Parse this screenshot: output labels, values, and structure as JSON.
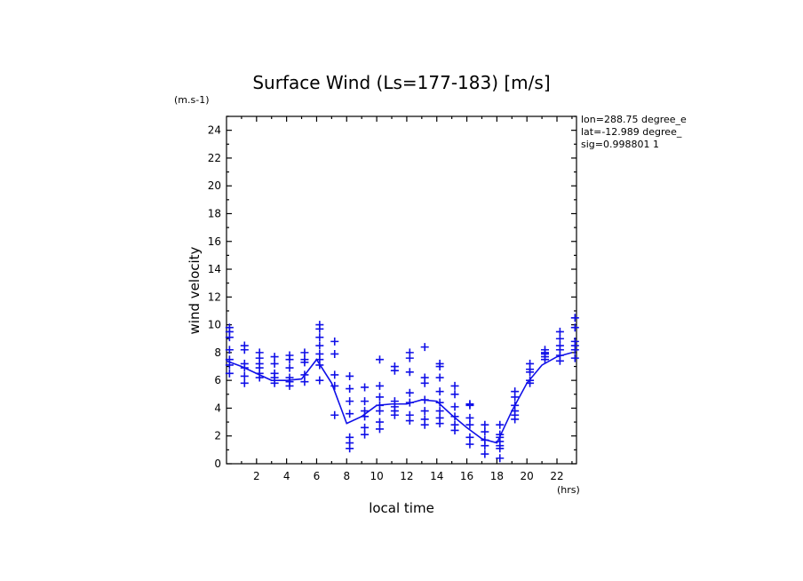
{
  "chart_data": {
    "type": "scatter",
    "title": "Surface Wind  (Ls=177-183) [m/s]",
    "units_label": "(m.s-1)",
    "xlabel": "local time",
    "x_units": "(hrs)",
    "ylabel": "wind velocity",
    "xlim": [
      0,
      23.3
    ],
    "ylim": [
      0,
      25
    ],
    "x_ticks": [
      2,
      4,
      6,
      8,
      10,
      12,
      14,
      16,
      18,
      20,
      22
    ],
    "y_ticks": [
      0,
      2,
      4,
      6,
      8,
      10,
      12,
      14,
      16,
      18,
      20,
      22,
      24
    ],
    "info": [
      "lon=288.75 degree_e",
      "lat=-12.989 degree_",
      "sig=0.998801 1"
    ],
    "color": "#1010e8",
    "series": [
      {
        "name": "mean",
        "kind": "line",
        "x": [
          0,
          1,
          2,
          3,
          4,
          5,
          6,
          7,
          8,
          9,
          10,
          11,
          12,
          13,
          14,
          15,
          16,
          17,
          18,
          19,
          20,
          21,
          22,
          23
        ],
        "y": [
          7.4,
          7.0,
          6.5,
          6.0,
          6.0,
          6.1,
          7.5,
          5.8,
          2.9,
          3.4,
          4.2,
          4.3,
          4.3,
          4.6,
          4.5,
          3.5,
          2.6,
          1.8,
          1.5,
          3.8,
          5.8,
          7.1,
          7.7,
          8.0
        ]
      },
      {
        "name": "samples",
        "kind": "points",
        "points": [
          [
            0.2,
            9.8
          ],
          [
            0.2,
            9.5
          ],
          [
            0.2,
            9.1
          ],
          [
            0.2,
            8.2
          ],
          [
            0.2,
            7.5
          ],
          [
            0.2,
            7.1
          ],
          [
            0.2,
            6.5
          ],
          [
            1.2,
            8.5
          ],
          [
            1.2,
            8.2
          ],
          [
            1.2,
            7.2
          ],
          [
            1.2,
            6.9
          ],
          [
            1.2,
            6.3
          ],
          [
            1.2,
            5.8
          ],
          [
            2.2,
            8.0
          ],
          [
            2.2,
            7.6
          ],
          [
            2.2,
            7.2
          ],
          [
            2.2,
            6.9
          ],
          [
            2.2,
            6.5
          ],
          [
            2.2,
            6.2
          ],
          [
            3.2,
            7.7
          ],
          [
            3.2,
            7.2
          ],
          [
            3.2,
            6.5
          ],
          [
            3.2,
            6.2
          ],
          [
            3.2,
            5.8
          ],
          [
            4.2,
            7.8
          ],
          [
            4.2,
            7.5
          ],
          [
            4.2,
            6.9
          ],
          [
            4.2,
            6.2
          ],
          [
            4.2,
            5.9
          ],
          [
            4.2,
            5.6
          ],
          [
            5.2,
            8.0
          ],
          [
            5.2,
            7.5
          ],
          [
            5.2,
            7.3
          ],
          [
            5.2,
            6.4
          ],
          [
            5.2,
            5.9
          ],
          [
            6.2,
            10.0
          ],
          [
            6.2,
            9.7
          ],
          [
            6.2,
            9.1
          ],
          [
            6.2,
            8.5
          ],
          [
            6.2,
            7.9
          ],
          [
            6.2,
            7.5
          ],
          [
            6.2,
            7.1
          ],
          [
            6.2,
            6.0
          ],
          [
            7.2,
            8.8
          ],
          [
            7.2,
            7.9
          ],
          [
            7.2,
            6.4
          ],
          [
            7.2,
            5.6
          ],
          [
            7.2,
            3.5
          ],
          [
            8.2,
            6.3
          ],
          [
            8.2,
            5.4
          ],
          [
            8.2,
            4.5
          ],
          [
            8.2,
            3.6
          ],
          [
            8.2,
            1.9
          ],
          [
            8.2,
            1.5
          ],
          [
            8.2,
            1.1
          ],
          [
            9.2,
            5.5
          ],
          [
            9.2,
            4.5
          ],
          [
            9.2,
            3.8
          ],
          [
            9.2,
            3.4
          ],
          [
            9.2,
            2.6
          ],
          [
            9.2,
            2.1
          ],
          [
            10.2,
            7.5
          ],
          [
            10.2,
            5.6
          ],
          [
            10.2,
            4.8
          ],
          [
            10.2,
            4.2
          ],
          [
            10.2,
            3.8
          ],
          [
            10.2,
            3.0
          ],
          [
            10.2,
            2.5
          ],
          [
            11.2,
            7.0
          ],
          [
            11.2,
            6.7
          ],
          [
            11.2,
            4.5
          ],
          [
            11.2,
            4.1
          ],
          [
            11.2,
            3.8
          ],
          [
            11.2,
            3.5
          ],
          [
            12.2,
            8.0
          ],
          [
            12.2,
            7.6
          ],
          [
            12.2,
            6.6
          ],
          [
            12.2,
            5.1
          ],
          [
            12.2,
            4.4
          ],
          [
            12.2,
            3.5
          ],
          [
            12.2,
            3.1
          ],
          [
            13.2,
            8.4
          ],
          [
            13.2,
            6.2
          ],
          [
            13.2,
            5.8
          ],
          [
            13.2,
            4.6
          ],
          [
            13.2,
            3.8
          ],
          [
            13.2,
            3.2
          ],
          [
            13.2,
            2.8
          ],
          [
            14.2,
            7.2
          ],
          [
            14.2,
            7.0
          ],
          [
            14.2,
            6.2
          ],
          [
            14.2,
            5.2
          ],
          [
            14.2,
            4.4
          ],
          [
            14.2,
            3.8
          ],
          [
            14.2,
            3.3
          ],
          [
            14.2,
            2.9
          ],
          [
            15.2,
            5.6
          ],
          [
            15.2,
            5.0
          ],
          [
            15.2,
            4.1
          ],
          [
            15.2,
            3.4
          ],
          [
            15.2,
            2.8
          ],
          [
            15.2,
            2.4
          ],
          [
            16.2,
            4.3
          ],
          [
            16.2,
            4.2
          ],
          [
            16.2,
            3.3
          ],
          [
            16.2,
            2.8
          ],
          [
            16.2,
            1.9
          ],
          [
            16.2,
            1.4
          ],
          [
            17.2,
            2.8
          ],
          [
            17.2,
            2.3
          ],
          [
            17.2,
            1.7
          ],
          [
            17.2,
            1.3
          ],
          [
            17.2,
            0.7
          ],
          [
            18.2,
            2.8
          ],
          [
            18.2,
            2.1
          ],
          [
            18.2,
            1.9
          ],
          [
            18.2,
            1.6
          ],
          [
            18.2,
            1.3
          ],
          [
            18.2,
            1.1
          ],
          [
            18.2,
            0.4
          ],
          [
            19.2,
            5.2
          ],
          [
            19.2,
            4.8
          ],
          [
            19.2,
            4.2
          ],
          [
            19.2,
            3.8
          ],
          [
            19.2,
            3.5
          ],
          [
            19.2,
            3.2
          ],
          [
            20.2,
            7.2
          ],
          [
            20.2,
            6.8
          ],
          [
            20.2,
            6.6
          ],
          [
            20.2,
            6.0
          ],
          [
            20.2,
            5.8
          ],
          [
            21.2,
            8.2
          ],
          [
            21.2,
            8.0
          ],
          [
            21.2,
            7.9
          ],
          [
            21.2,
            7.7
          ],
          [
            21.2,
            7.5
          ],
          [
            22.2,
            9.5
          ],
          [
            22.2,
            9.0
          ],
          [
            22.2,
            8.5
          ],
          [
            22.2,
            8.2
          ],
          [
            22.2,
            7.8
          ],
          [
            22.2,
            7.4
          ],
          [
            23.2,
            10.5
          ],
          [
            23.2,
            9.8
          ],
          [
            23.2,
            8.8
          ],
          [
            23.2,
            8.5
          ],
          [
            23.2,
            8.2
          ],
          [
            23.2,
            7.6
          ]
        ]
      }
    ]
  }
}
